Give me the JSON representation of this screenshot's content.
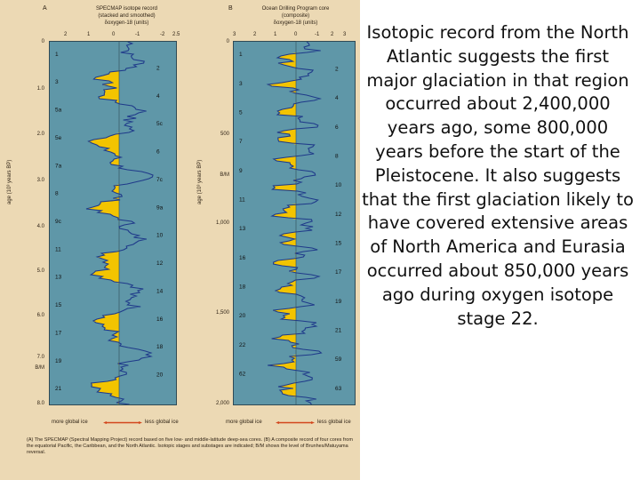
{
  "figure": {
    "panel_a": {
      "letter": "A",
      "title_lines": [
        "SPECMAP isotope record",
        "(stacked and smoothed)",
        "δoxygen-18 (units)"
      ],
      "x_ticks": [
        "2",
        "1",
        "0",
        "-1",
        "-2",
        "2.5"
      ],
      "y_ticks": [
        "0",
        "1.0",
        "2.0",
        "3.0",
        "4.0",
        "5.0",
        "6.0",
        "7.0",
        "B/M",
        "8.0"
      ],
      "y_label": "age (10³ years BP)",
      "stages": [
        "1",
        "2",
        "3",
        "4",
        "5a",
        "5c",
        "5e",
        "6",
        "7a",
        "7c",
        "8",
        "9a",
        "9c",
        "10",
        "11",
        "12",
        "13",
        "14",
        "15",
        "16",
        "17",
        "18",
        "19",
        "20",
        "21"
      ]
    },
    "panel_b": {
      "letter": "B",
      "title_lines": [
        "Ocean Drilling Program core",
        "(composite)",
        "δoxygen-18 (units)"
      ],
      "x_ticks": [
        "3",
        "2",
        "1",
        "0",
        "-1",
        "2",
        "3"
      ],
      "y_ticks": [
        "0",
        "500",
        "B/M",
        "1,000",
        "1,500",
        "2,000"
      ],
      "y_label": "age (10³ years BP)",
      "stages": [
        "1",
        "2",
        "3",
        "4",
        "5",
        "6",
        "7",
        "8",
        "9",
        "10",
        "11",
        "12",
        "13",
        "15",
        "16",
        "17",
        "18",
        "19",
        "20",
        "21",
        "22",
        "59",
        "62",
        "63"
      ]
    },
    "bottom_left": "more global ice",
    "bottom_right": "less global ice",
    "caption": "(A) The SPECMAP (Spectral Mapping Project) record based on five low- and middle-latitude deep-sea cores. (B) A composite record of four cores from the equatorial Pacific, the Caribbean, and the North Atlantic. Isotopic stages and substages are indicated; B/M shows the level of Brunhes/Matuyama reversal."
  },
  "side_text": "Isotopic record from the North Atlantic suggests the first major glaciation in that region occurred about 2,400,000 years ago, some 800,000 years before the start of the Pleistocene. It also suggests that the first glaciation likely to have covered extensive areas of North America and Eurasia occurred about 850,000 years ago during oxygen isotope stage 22.",
  "colors": {
    "background": "#ecd9b4",
    "plot_fill": "#5f97a8",
    "glacial_fill": "#f3c400",
    "curve": "#1f3a8a",
    "arrow": "#d2451c"
  }
}
